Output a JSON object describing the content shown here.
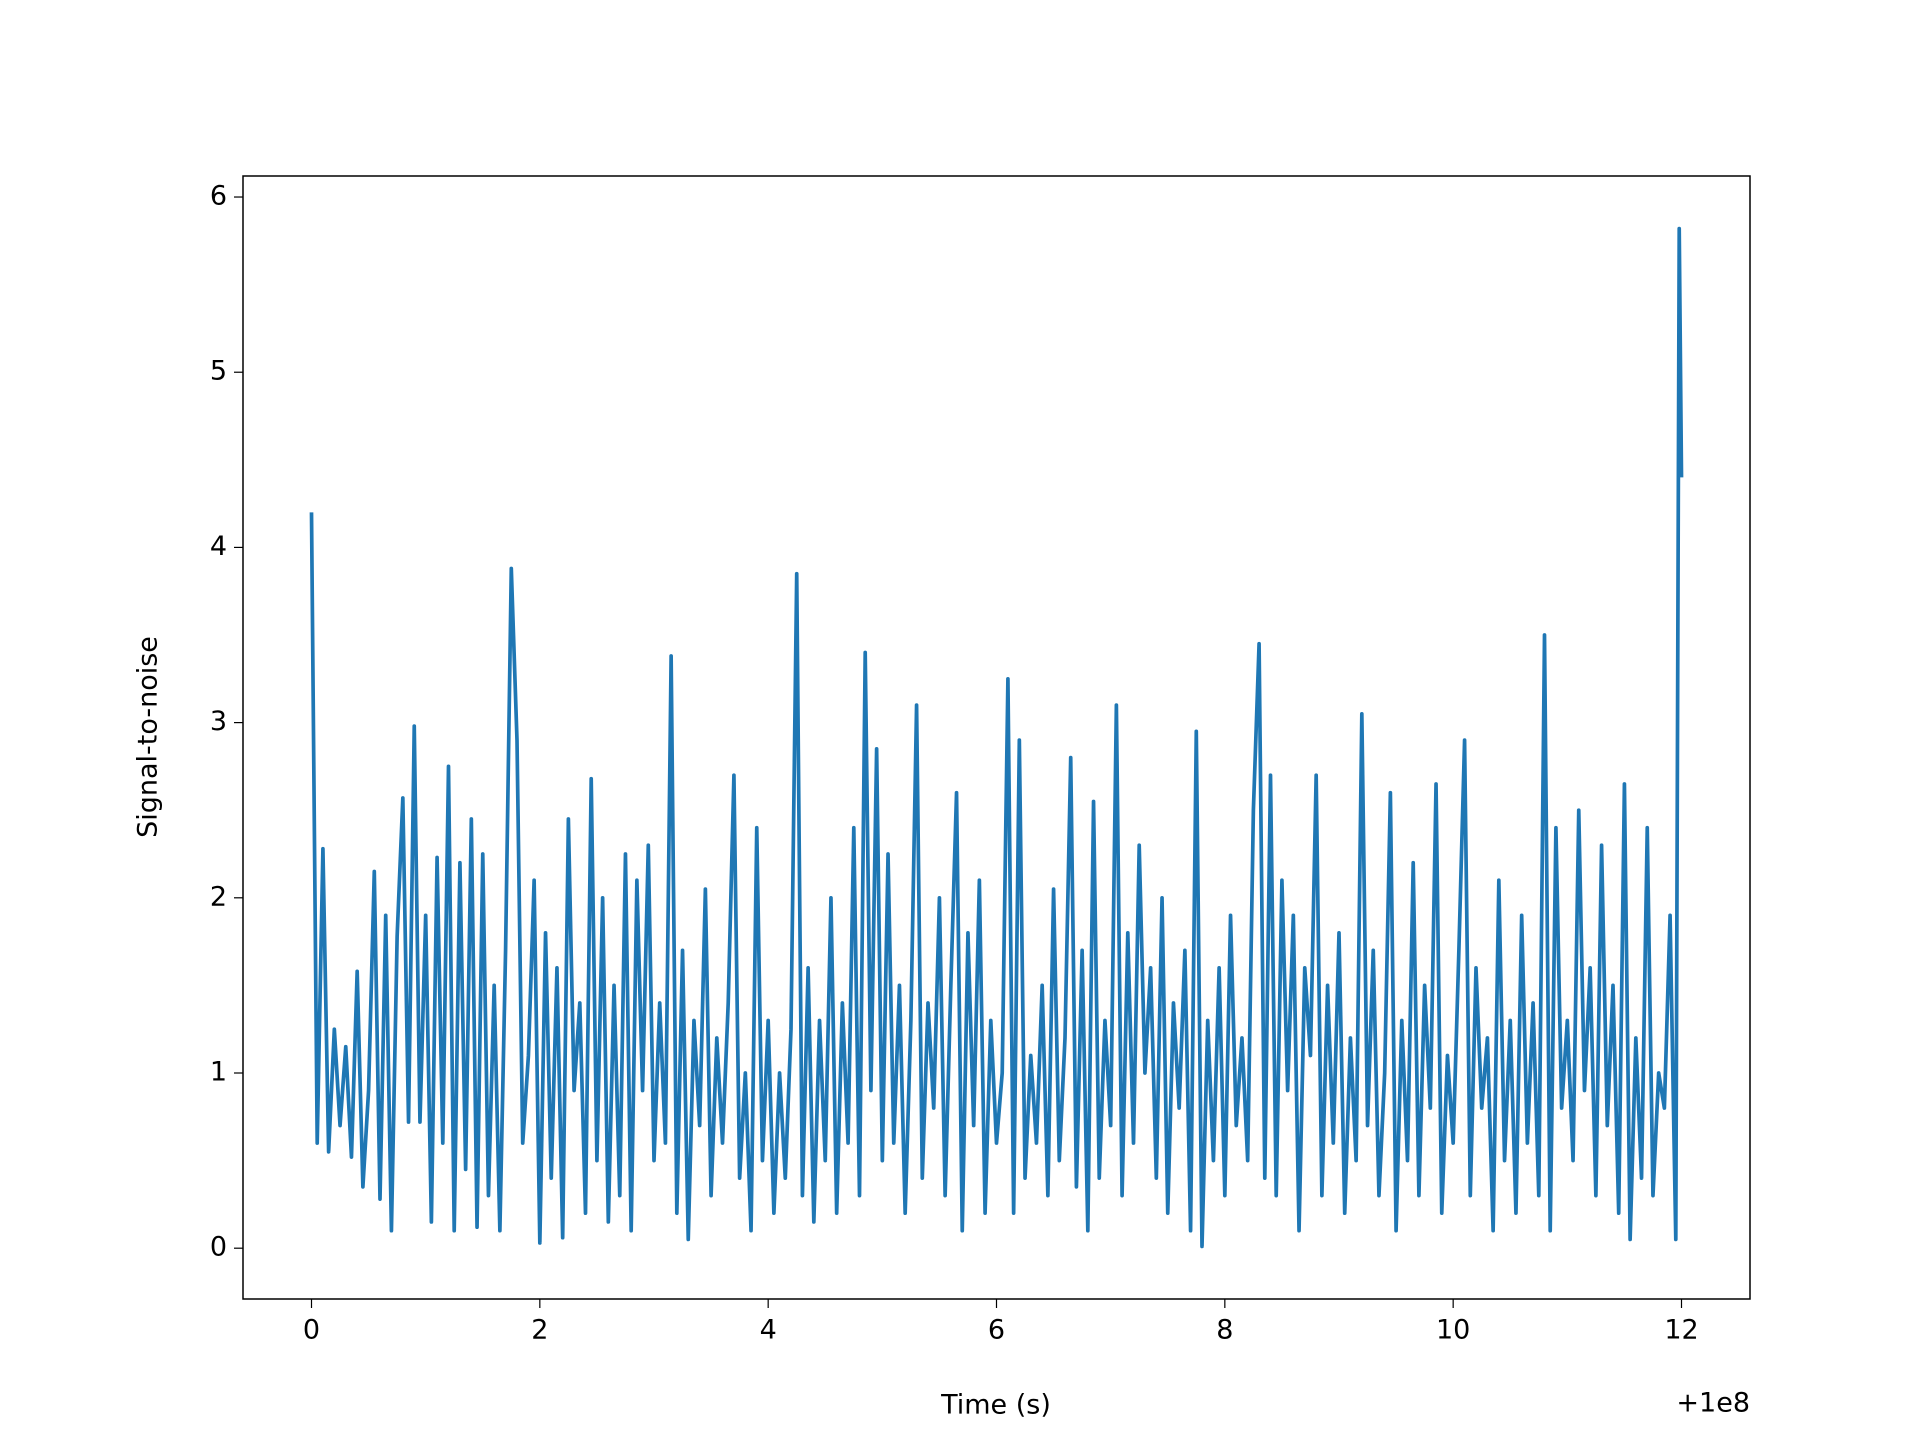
{
  "chart_data": {
    "type": "line",
    "x_label": "Time (s)",
    "y_label": "Signal-to-noise",
    "x_offset_label": "+1e8",
    "color": "#1f77b4",
    "xlim": [
      -0.6,
      12.6
    ],
    "xticks": [
      0,
      2,
      4,
      6,
      8,
      10,
      12
    ],
    "ylim": [
      -0.29,
      6.12
    ],
    "yticks": [
      0,
      1,
      2,
      3,
      4,
      5,
      6
    ],
    "x": [
      0,
      0.05,
      0.1,
      0.15,
      0.2,
      0.25,
      0.3,
      0.35,
      0.4,
      0.45,
      0.5,
      0.55,
      0.6,
      0.65,
      0.7,
      0.75,
      0.8,
      0.85,
      0.9,
      0.95,
      1,
      1.05,
      1.1,
      1.15,
      1.2,
      1.25,
      1.3,
      1.35,
      1.4,
      1.45,
      1.5,
      1.55,
      1.6,
      1.65,
      1.7,
      1.75,
      1.8,
      1.85,
      1.9,
      1.95,
      2,
      2.05,
      2.1,
      2.15,
      2.2,
      2.25,
      2.3,
      2.35,
      2.4,
      2.45,
      2.5,
      2.55,
      2.6,
      2.65,
      2.7,
      2.75,
      2.8,
      2.85,
      2.9,
      2.95,
      3,
      3.05,
      3.1,
      3.15,
      3.2,
      3.25,
      3.3,
      3.35,
      3.4,
      3.45,
      3.5,
      3.55,
      3.6,
      3.65,
      3.7,
      3.75,
      3.8,
      3.85,
      3.9,
      3.95,
      4,
      4.05,
      4.1,
      4.15,
      4.2,
      4.25,
      4.3,
      4.35,
      4.4,
      4.45,
      4.5,
      4.55,
      4.6,
      4.65,
      4.7,
      4.75,
      4.8,
      4.85,
      4.9,
      4.95,
      5,
      5.05,
      5.1,
      5.15,
      5.2,
      5.25,
      5.3,
      5.35,
      5.4,
      5.45,
      5.5,
      5.55,
      5.6,
      5.65,
      5.7,
      5.75,
      5.8,
      5.85,
      5.9,
      5.95,
      6,
      6.05,
      6.1,
      6.15,
      6.2,
      6.25,
      6.3,
      6.35,
      6.4,
      6.45,
      6.5,
      6.55,
      6.6,
      6.65,
      6.7,
      6.75,
      6.8,
      6.85,
      6.9,
      6.95,
      7,
      7.05,
      7.1,
      7.15,
      7.2,
      7.25,
      7.3,
      7.35,
      7.4,
      7.45,
      7.5,
      7.55,
      7.6,
      7.65,
      7.7,
      7.75,
      7.8,
      7.85,
      7.9,
      7.95,
      8,
      8.05,
      8.1,
      8.15,
      8.2,
      8.25,
      8.3,
      8.35,
      8.4,
      8.45,
      8.5,
      8.55,
      8.6,
      8.65,
      8.7,
      8.75,
      8.8,
      8.85,
      8.9,
      8.95,
      9,
      9.05,
      9.1,
      9.15,
      9.2,
      9.25,
      9.3,
      9.35,
      9.4,
      9.45,
      9.5,
      9.55,
      9.6,
      9.65,
      9.7,
      9.75,
      9.8,
      9.85,
      9.9,
      9.95,
      10,
      10.05,
      10.1,
      10.15,
      10.2,
      10.25,
      10.3,
      10.35,
      10.4,
      10.45,
      10.5,
      10.55,
      10.6,
      10.65,
      10.7,
      10.75,
      10.8,
      10.85,
      10.9,
      10.95,
      11,
      11.05,
      11.1,
      11.15,
      11.2,
      11.25,
      11.3,
      11.35,
      11.4,
      11.45,
      11.5,
      11.55,
      11.6,
      11.65,
      11.7,
      11.75,
      11.8,
      11.85,
      11.9,
      11.95,
      11.98,
      12
    ],
    "values": [
      4.2,
      0.6,
      2.28,
      0.55,
      1.25,
      0.7,
      1.15,
      0.52,
      1.58,
      0.35,
      0.9,
      2.15,
      0.28,
      1.9,
      0.1,
      1.78,
      2.57,
      0.72,
      2.98,
      0.72,
      1.9,
      0.15,
      2.23,
      0.6,
      2.75,
      0.1,
      2.2,
      0.45,
      2.45,
      0.12,
      2.25,
      0.3,
      1.5,
      0.1,
      1.7,
      3.88,
      2.9,
      0.6,
      1.1,
      2.1,
      0.03,
      1.8,
      0.4,
      1.6,
      0.06,
      2.45,
      0.9,
      1.4,
      0.2,
      2.68,
      0.5,
      2.0,
      0.15,
      1.5,
      0.3,
      2.25,
      0.1,
      2.1,
      0.9,
      2.3,
      0.5,
      1.4,
      0.6,
      3.38,
      0.2,
      1.7,
      0.05,
      1.3,
      0.7,
      2.05,
      0.3,
      1.2,
      0.6,
      1.4,
      2.7,
      0.4,
      1.0,
      0.1,
      2.4,
      0.5,
      1.3,
      0.2,
      1.0,
      0.4,
      1.25,
      3.85,
      0.3,
      1.6,
      0.15,
      1.3,
      0.5,
      2.0,
      0.2,
      1.4,
      0.6,
      2.4,
      0.3,
      3.4,
      0.9,
      2.85,
      0.5,
      2.25,
      0.6,
      1.5,
      0.2,
      1.3,
      3.1,
      0.4,
      1.4,
      0.8,
      2.0,
      0.3,
      1.5,
      2.6,
      0.1,
      1.8,
      0.7,
      2.1,
      0.2,
      1.3,
      0.6,
      1.0,
      3.25,
      0.2,
      2.9,
      0.4,
      1.1,
      0.6,
      1.5,
      0.3,
      2.05,
      0.5,
      1.2,
      2.8,
      0.35,
      1.7,
      0.1,
      2.55,
      0.4,
      1.3,
      0.7,
      3.1,
      0.3,
      1.8,
      0.6,
      2.3,
      1.0,
      1.6,
      0.4,
      2.0,
      0.2,
      1.4,
      0.8,
      1.7,
      0.1,
      2.95,
      0.01,
      1.3,
      0.5,
      1.6,
      0.3,
      1.9,
      0.7,
      1.2,
      0.5,
      2.5,
      3.45,
      0.4,
      2.7,
      0.3,
      2.1,
      0.9,
      1.9,
      0.1,
      1.6,
      1.1,
      2.7,
      0.3,
      1.5,
      0.6,
      1.8,
      0.2,
      1.2,
      0.5,
      3.05,
      0.7,
      1.7,
      0.3,
      1.0,
      2.6,
      0.1,
      1.3,
      0.5,
      2.2,
      0.3,
      1.5,
      0.8,
      2.65,
      0.2,
      1.1,
      0.6,
      1.7,
      2.9,
      0.3,
      1.6,
      0.8,
      1.2,
      0.1,
      2.1,
      0.5,
      1.3,
      0.2,
      1.9,
      0.6,
      1.4,
      0.3,
      3.5,
      0.1,
      2.4,
      0.8,
      1.3,
      0.5,
      2.5,
      0.9,
      1.6,
      0.3,
      2.3,
      0.7,
      1.5,
      0.2,
      2.65,
      0.05,
      1.2,
      0.4,
      2.4,
      0.3,
      1.0,
      0.8,
      1.9,
      0.05,
      5.82,
      4.4
    ]
  }
}
